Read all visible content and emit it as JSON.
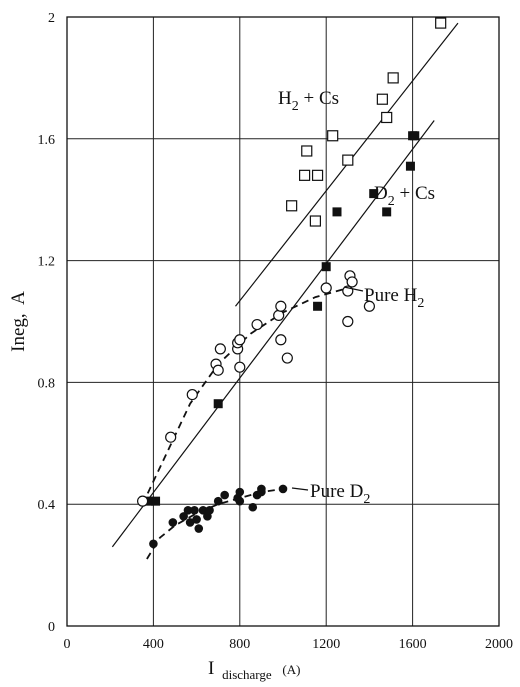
{
  "chart_data": {
    "type": "scatter",
    "title": "",
    "xlabel": {
      "main": "I",
      "sub": "discharge",
      "unit": "(A)"
    },
    "ylabel": "Ineg,  A",
    "xlim": [
      0,
      2000
    ],
    "ylim": [
      0,
      2
    ],
    "xticks": [
      0,
      400,
      800,
      1200,
      1600,
      2000
    ],
    "yticks": [
      0,
      0.4,
      0.8,
      1.2,
      1.6,
      2
    ],
    "x_tick_labels": [
      "0",
      "400",
      "800",
      "1200",
      "1600",
      "2000"
    ],
    "y_tick_labels": [
      "0",
      "0.4",
      "0.8",
      "1.2",
      "1.6",
      "2"
    ],
    "grid": true,
    "series": [
      {
        "name": "H2 + Cs",
        "marker": "open-square",
        "points": [
          [
            1040,
            1.38
          ],
          [
            1100,
            1.48
          ],
          [
            1110,
            1.56
          ],
          [
            1150,
            1.33
          ],
          [
            1160,
            1.48
          ],
          [
            1230,
            1.61
          ],
          [
            1300,
            1.53
          ],
          [
            1460,
            1.73
          ],
          [
            1480,
            1.67
          ],
          [
            1510,
            1.8
          ],
          [
            1730,
            1.98
          ]
        ]
      },
      {
        "name": "D2 + Cs",
        "marker": "filled-square",
        "points": [
          [
            380,
            0.41
          ],
          [
            410,
            0.41
          ],
          [
            700,
            0.73
          ],
          [
            1160,
            1.05
          ],
          [
            1200,
            1.18
          ],
          [
            1250,
            1.36
          ],
          [
            1420,
            1.42
          ],
          [
            1480,
            1.36
          ],
          [
            1590,
            1.51
          ],
          [
            1600,
            1.61
          ],
          [
            1610,
            1.61
          ]
        ]
      },
      {
        "name": "Pure H2",
        "marker": "open-circle",
        "points": [
          [
            350,
            0.41
          ],
          [
            480,
            0.62
          ],
          [
            580,
            0.76
          ],
          [
            690,
            0.86
          ],
          [
            700,
            0.84
          ],
          [
            710,
            0.91
          ],
          [
            790,
            0.91
          ],
          [
            790,
            0.93
          ],
          [
            800,
            0.94
          ],
          [
            800,
            0.85
          ],
          [
            880,
            0.99
          ],
          [
            980,
            1.02
          ],
          [
            990,
            1.05
          ],
          [
            990,
            0.94
          ],
          [
            1020,
            0.88
          ],
          [
            1200,
            1.11
          ],
          [
            1300,
            1.0
          ],
          [
            1300,
            1.1
          ],
          [
            1310,
            1.15
          ],
          [
            1320,
            1.13
          ],
          [
            1400,
            1.05
          ]
        ]
      },
      {
        "name": "Pure D2",
        "marker": "filled-circle",
        "points": [
          [
            400,
            0.27
          ],
          [
            490,
            0.34
          ],
          [
            540,
            0.36
          ],
          [
            560,
            0.38
          ],
          [
            570,
            0.34
          ],
          [
            590,
            0.38
          ],
          [
            600,
            0.35
          ],
          [
            610,
            0.32
          ],
          [
            630,
            0.38
          ],
          [
            650,
            0.36
          ],
          [
            660,
            0.38
          ],
          [
            700,
            0.41
          ],
          [
            730,
            0.43
          ],
          [
            790,
            0.42
          ],
          [
            800,
            0.41
          ],
          [
            800,
            0.44
          ],
          [
            860,
            0.39
          ],
          [
            880,
            0.43
          ],
          [
            900,
            0.45
          ],
          [
            900,
            0.44
          ],
          [
            1000,
            0.45
          ]
        ]
      }
    ],
    "fit_lines": [
      {
        "series": "H2 + Cs",
        "style": "solid",
        "from": [
          780,
          1.05
        ],
        "to": [
          1810,
          1.98
        ]
      },
      {
        "series": "D2 + Cs",
        "style": "solid",
        "from": [
          210,
          0.26
        ],
        "to": [
          1700,
          1.66
        ]
      },
      {
        "series": "Pure H2",
        "style": "dashed",
        "points": [
          [
            350,
            0.4
          ],
          [
            450,
            0.55
          ],
          [
            570,
            0.73
          ],
          [
            700,
            0.86
          ],
          [
            850,
            0.96
          ],
          [
            1000,
            1.03
          ],
          [
            1150,
            1.08
          ],
          [
            1300,
            1.11
          ]
        ]
      },
      {
        "series": "Pure D2",
        "style": "dashed",
        "points": [
          [
            370,
            0.22
          ],
          [
            430,
            0.29
          ],
          [
            500,
            0.33
          ],
          [
            600,
            0.37
          ],
          [
            700,
            0.4
          ],
          [
            800,
            0.42
          ],
          [
            900,
            0.44
          ],
          [
            1000,
            0.45
          ]
        ]
      }
    ],
    "annotations": [
      {
        "series": "H2 + Cs",
        "text": "H",
        "sub": "2",
        "rest": " + Cs",
        "leader": false
      },
      {
        "series": "D2 + Cs",
        "text": "D",
        "sub": "2",
        "rest": " + Cs",
        "leader": false
      },
      {
        "series": "Pure H2",
        "text": "Pure H",
        "sub": "2",
        "rest": "",
        "leader": true
      },
      {
        "series": "Pure D2",
        "text": "Pure D",
        "sub": "2",
        "rest": "",
        "leader": true
      }
    ]
  }
}
